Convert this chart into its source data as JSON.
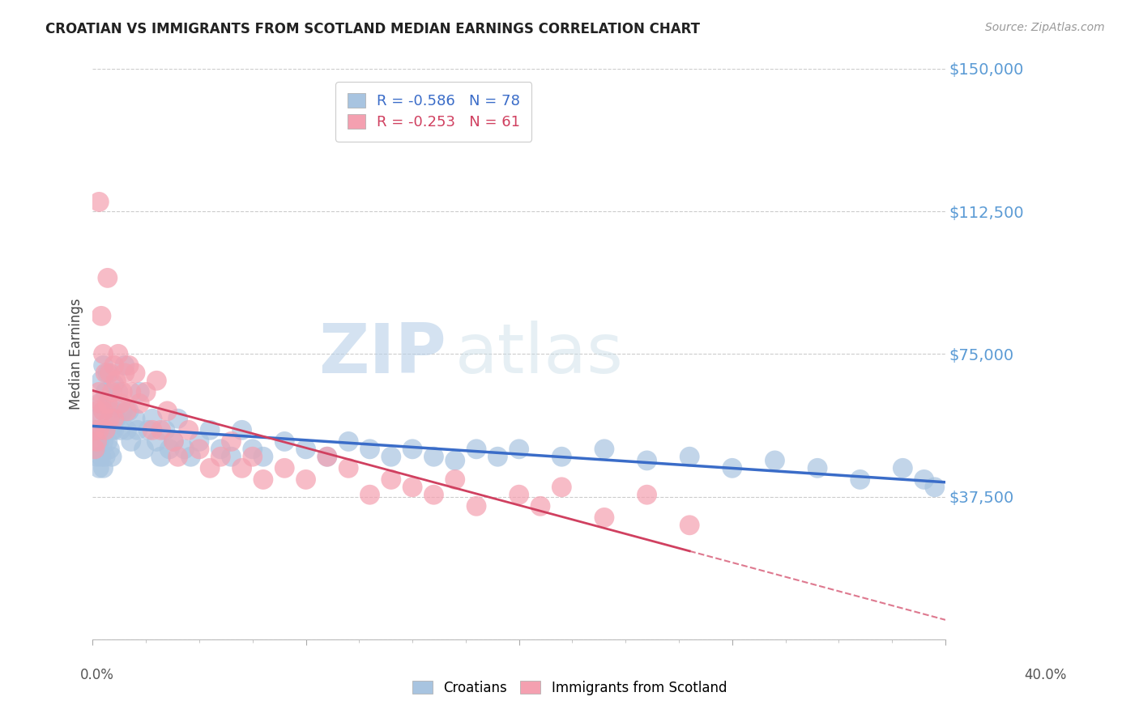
{
  "title": "CROATIAN VS IMMIGRANTS FROM SCOTLAND MEDIAN EARNINGS CORRELATION CHART",
  "source": "Source: ZipAtlas.com",
  "xlabel": "",
  "ylabel": "Median Earnings",
  "watermark_zip": "ZIP",
  "watermark_atlas": "atlas",
  "xmin": 0.0,
  "xmax": 0.4,
  "ymin": 0,
  "ymax": 150000,
  "yticks": [
    0,
    37500,
    75000,
    112500,
    150000
  ],
  "ytick_labels": [
    "",
    "$37,500",
    "$75,000",
    "$112,500",
    "$150,000"
  ],
  "xtick_left_label": "0.0%",
  "xtick_right_label": "40.0%",
  "blue_R": -0.586,
  "blue_N": 78,
  "pink_R": -0.253,
  "pink_N": 61,
  "blue_color": "#a8c4e0",
  "pink_color": "#f4a0b0",
  "blue_line_color": "#3a6cc8",
  "pink_line_color": "#d04060",
  "legend_label_blue": "Croatians",
  "legend_label_pink": "Immigrants from Scotland",
  "blue_x": [
    0.001,
    0.001,
    0.002,
    0.002,
    0.003,
    0.003,
    0.003,
    0.004,
    0.004,
    0.004,
    0.005,
    0.005,
    0.005,
    0.005,
    0.006,
    0.006,
    0.006,
    0.007,
    0.007,
    0.008,
    0.008,
    0.009,
    0.009,
    0.01,
    0.01,
    0.011,
    0.012,
    0.013,
    0.014,
    0.015,
    0.016,
    0.017,
    0.018,
    0.02,
    0.021,
    0.022,
    0.024,
    0.026,
    0.028,
    0.03,
    0.032,
    0.034,
    0.036,
    0.038,
    0.04,
    0.043,
    0.046,
    0.05,
    0.055,
    0.06,
    0.065,
    0.07,
    0.075,
    0.08,
    0.09,
    0.1,
    0.11,
    0.12,
    0.13,
    0.14,
    0.15,
    0.16,
    0.17,
    0.18,
    0.19,
    0.2,
    0.22,
    0.24,
    0.26,
    0.28,
    0.3,
    0.32,
    0.34,
    0.36,
    0.38,
    0.39,
    0.395,
    0.01
  ],
  "blue_y": [
    55000,
    50000,
    58000,
    48000,
    62000,
    52000,
    45000,
    68000,
    55000,
    48000,
    72000,
    60000,
    52000,
    45000,
    65000,
    55000,
    48000,
    70000,
    52000,
    60000,
    50000,
    55000,
    48000,
    67000,
    55000,
    58000,
    65000,
    55000,
    60000,
    72000,
    55000,
    60000,
    52000,
    58000,
    55000,
    65000,
    50000,
    55000,
    58000,
    52000,
    48000,
    55000,
    50000,
    52000,
    58000,
    50000,
    48000,
    52000,
    55000,
    50000,
    48000,
    55000,
    50000,
    48000,
    52000,
    50000,
    48000,
    52000,
    50000,
    48000,
    50000,
    48000,
    47000,
    50000,
    48000,
    50000,
    48000,
    50000,
    47000,
    48000,
    45000,
    47000,
    45000,
    42000,
    45000,
    42000,
    40000,
    60000
  ],
  "pink_x": [
    0.001,
    0.001,
    0.002,
    0.002,
    0.003,
    0.003,
    0.003,
    0.004,
    0.004,
    0.005,
    0.005,
    0.006,
    0.006,
    0.007,
    0.007,
    0.008,
    0.008,
    0.009,
    0.01,
    0.01,
    0.011,
    0.012,
    0.013,
    0.014,
    0.015,
    0.016,
    0.017,
    0.018,
    0.02,
    0.022,
    0.025,
    0.028,
    0.03,
    0.032,
    0.035,
    0.038,
    0.04,
    0.045,
    0.05,
    0.055,
    0.06,
    0.065,
    0.07,
    0.075,
    0.08,
    0.09,
    0.1,
    0.11,
    0.12,
    0.13,
    0.14,
    0.15,
    0.16,
    0.17,
    0.18,
    0.2,
    0.21,
    0.22,
    0.24,
    0.26,
    0.28
  ],
  "pink_y": [
    55000,
    50000,
    60000,
    52000,
    115000,
    65000,
    55000,
    85000,
    62000,
    75000,
    60000,
    70000,
    55000,
    95000,
    62000,
    70000,
    58000,
    65000,
    72000,
    58000,
    68000,
    75000,
    62000,
    65000,
    70000,
    60000,
    72000,
    65000,
    70000,
    62000,
    65000,
    55000,
    68000,
    55000,
    60000,
    52000,
    48000,
    55000,
    50000,
    45000,
    48000,
    52000,
    45000,
    48000,
    42000,
    45000,
    42000,
    48000,
    45000,
    38000,
    42000,
    40000,
    38000,
    42000,
    35000,
    38000,
    35000,
    40000,
    32000,
    38000,
    30000
  ]
}
